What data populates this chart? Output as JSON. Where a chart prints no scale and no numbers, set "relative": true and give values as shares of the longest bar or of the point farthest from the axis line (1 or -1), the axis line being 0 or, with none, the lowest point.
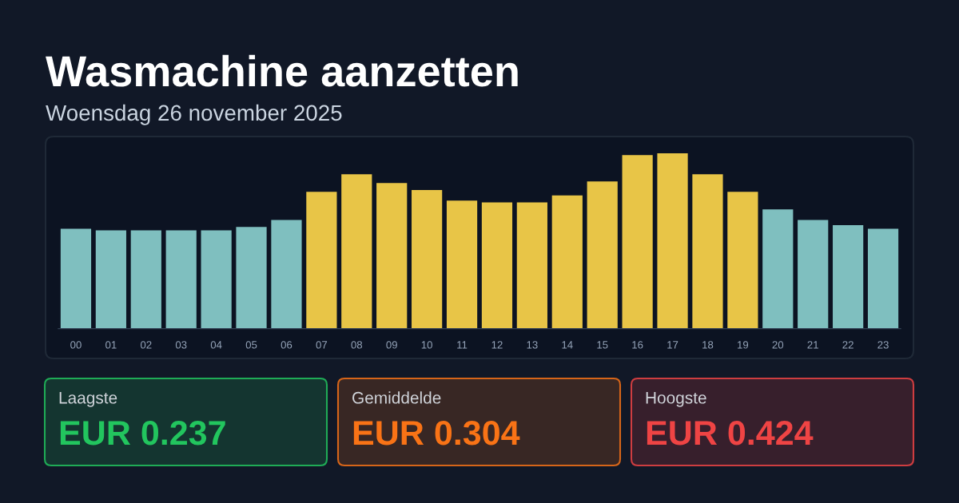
{
  "chart_data": [
    {
      "type": "bar",
      "title": "Wasmachine aanzetten",
      "subtitle": "Woensdag 26 november 2025",
      "relative": true,
      "categories": [
        "00",
        "01",
        "02",
        "03",
        "04",
        "05",
        "06",
        "07",
        "08",
        "09",
        "10",
        "11",
        "12",
        "13",
        "14",
        "15",
        "16",
        "17",
        "18",
        "19",
        "20",
        "21",
        "22",
        "23"
      ],
      "values": [
        0.57,
        0.56,
        0.56,
        0.56,
        0.56,
        0.58,
        0.62,
        0.78,
        0.88,
        0.83,
        0.79,
        0.73,
        0.72,
        0.72,
        0.76,
        0.84,
        0.99,
        1,
        0.88,
        0.78,
        0.68,
        0.62,
        0.59,
        0.57
      ],
      "colors": [
        "#7fbfbf",
        "#7fbfbf",
        "#7fbfbf",
        "#7fbfbf",
        "#7fbfbf",
        "#7fbfbf",
        "#7fbfbf",
        "#e8c547",
        "#e8c547",
        "#e8c547",
        "#e8c547",
        "#e8c547",
        "#e8c547",
        "#e8c547",
        "#e8c547",
        "#e8c547",
        "#e8c547",
        "#e8c547",
        "#e8c547",
        "#e8c547",
        "#7fbfbf",
        "#7fbfbf",
        "#7fbfbf",
        "#7fbfbf"
      ]
    },
    {
      "type": "other",
      "title": "Laagste",
      "annotations": [
        "EUR 0.237"
      ],
      "color": "#22c55e"
    },
    {
      "type": "other",
      "title": "Gemiddelde",
      "annotations": [
        "EUR 0.304"
      ],
      "color": "#f97316"
    },
    {
      "type": "other",
      "title": "Hoogste",
      "annotations": [
        "EUR 0.424"
      ],
      "color": "#ef4444"
    }
  ]
}
